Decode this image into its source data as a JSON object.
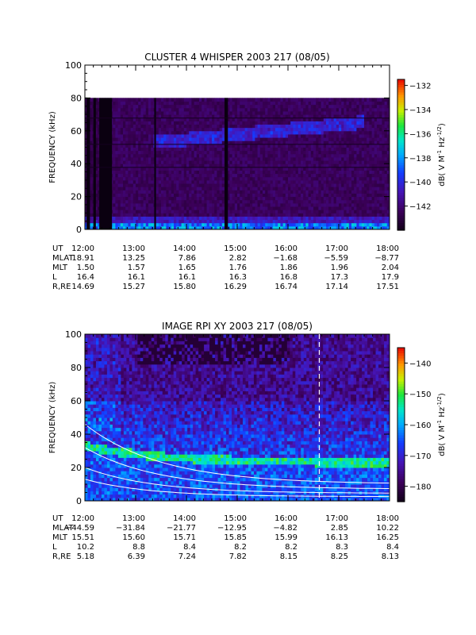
{
  "chart_data": [
    {
      "type": "heatmap",
      "title": "CLUSTER 4 WHISPER 2003 217 (08/05)",
      "ylabel": "FREQUENCY (kHz)",
      "ylim": [
        0,
        100
      ],
      "yticks": [
        "0",
        "20",
        "40",
        "60",
        "80",
        "100"
      ],
      "xlim": [
        "12:00",
        "18:00"
      ],
      "colorbar": {
        "label": "dB( V M⁻¹ Hz⁻¹ᐟ²)",
        "label_parts": [
          "dB( V M",
          "-1",
          " Hz",
          "-1/2",
          ")"
        ],
        "range": [
          -144,
          -131.5
        ],
        "ticks": [
          "-132",
          "-134",
          "-136",
          "-138",
          "-140",
          "-142"
        ]
      },
      "data_ceiling_khz": 80,
      "ephemeris": {
        "rows": [
          {
            "label": "UT",
            "values": [
              "12:00",
              "13:00",
              "14:00",
              "15:00",
              "16:00",
              "17:00",
              "18:00"
            ]
          },
          {
            "label": "MLAT",
            "values": [
              "18.91",
              "13.25",
              "7.86",
              "2.82",
              "−1.68",
              "−5.59",
              "−8.77"
            ]
          },
          {
            "label": "MLT",
            "values": [
              "1.50",
              "1.57",
              "1.65",
              "1.76",
              "1.86",
              "1.96",
              "2.04"
            ]
          },
          {
            "label": "L",
            "values": [
              "16.4",
              "16.1",
              "16.1",
              "16.3",
              "16.8",
              "17.3",
              "17.9"
            ]
          },
          {
            "label": "R,RE",
            "values": [
              "14.69",
              "15.27",
              "15.80",
              "16.29",
              "16.74",
              "17.14",
              "17.51"
            ]
          }
        ]
      }
    },
    {
      "type": "heatmap",
      "title": "IMAGE RPI XY 2003 217 (08/05)",
      "ylabel": "FREQUENCY (kHz)",
      "ylim": [
        0,
        100
      ],
      "yticks": [
        "0",
        "20",
        "40",
        "60",
        "80",
        "100"
      ],
      "xlim": [
        "12:00",
        "18:00"
      ],
      "colorbar": {
        "label_parts": [
          "dB( V M",
          "-1",
          " Hz",
          "-1/2",
          ")"
        ],
        "range": [
          -185,
          -135
        ],
        "ticks": [
          "-140",
          "-150",
          "-160",
          "-170",
          "-180"
        ]
      },
      "dashed_marker_time": "16:37",
      "ephemeris": {
        "rows": [
          {
            "label": "UT",
            "values": [
              "12:00",
              "13:00",
              "14:00",
              "15:00",
              "16:00",
              "17:00",
              "18:00"
            ]
          },
          {
            "label": "MLAT",
            "values": [
              "−44.59",
              "−31.84",
              "−21.77",
              "−12.95",
              "−4.82",
              "2.85",
              "10.22"
            ]
          },
          {
            "label": "MLT",
            "values": [
              "15.51",
              "15.60",
              "15.71",
              "15.85",
              "15.99",
              "16.13",
              "16.25"
            ]
          },
          {
            "label": "L",
            "values": [
              "10.2",
              "8.8",
              "8.4",
              "8.2",
              "8.2",
              "8.3",
              "8.4"
            ]
          },
          {
            "label": "R,RE",
            "values": [
              "5.18",
              "6.39",
              "7.24",
              "7.82",
              "8.15",
              "8.25",
              "8.13"
            ]
          }
        ]
      }
    }
  ]
}
